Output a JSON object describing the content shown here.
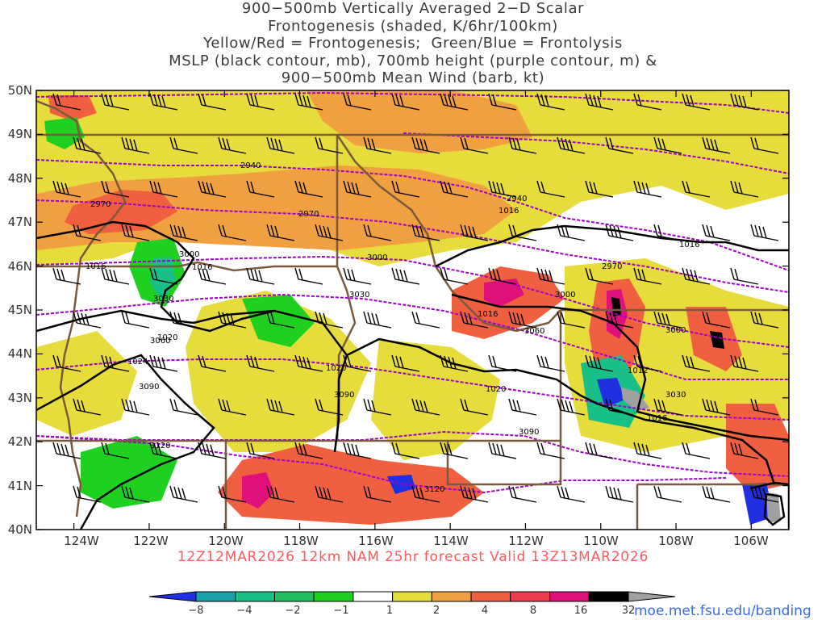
{
  "title_lines": [
    "900−500mb Vertically Averaged 2−D Scalar",
    "Frontogenesis (shaded, K/6hr/100km)",
    "Yellow/Red = Frontogenesis;  Green/Blue = Frontolysis",
    "MSLP (black contour, mb), 700mb height (purple contour, m) &",
    "900−500mb Mean Wind (barb, kt)"
  ],
  "valid_line": "12Z12MAR2026 12km NAM 25hr forecast Valid 13Z13MAR2026",
  "credit": "moe.met.fsu.edu/banding",
  "map": {
    "lon_range": [
      -125,
      -105
    ],
    "lat_range": [
      40,
      50
    ],
    "lat_ticks": [
      "40N",
      "41N",
      "42N",
      "43N",
      "44N",
      "45N",
      "46N",
      "47N",
      "48N",
      "49N",
      "50N"
    ],
    "lon_ticks": [
      "124W",
      "122W",
      "120W",
      "118W",
      "116W",
      "114W",
      "112W",
      "110W",
      "108W",
      "106W"
    ],
    "colors": {
      "mslp": "#000000",
      "height700": "#a000c8",
      "borders": "#7a5a3c",
      "barbs": "#000000"
    },
    "height_labels": [
      "2940",
      "2970",
      "3000",
      "3030",
      "3060",
      "3090",
      "3120"
    ],
    "mslp_labels": [
      "1012",
      "1016",
      "1020",
      "1024"
    ]
  },
  "colorbar": {
    "ticks": [
      "−8",
      "−4",
      "−2",
      "−1",
      "1",
      "2",
      "4",
      "8",
      "16",
      "32"
    ],
    "colors": [
      "#2030e0",
      "#1aa0a8",
      "#18c088",
      "#20c060",
      "#20d020",
      "#ffffff",
      "#e6dc3c",
      "#f0a040",
      "#f06040",
      "#f03c50",
      "#e0107a",
      "#000000",
      "#a0a0a0"
    ]
  }
}
